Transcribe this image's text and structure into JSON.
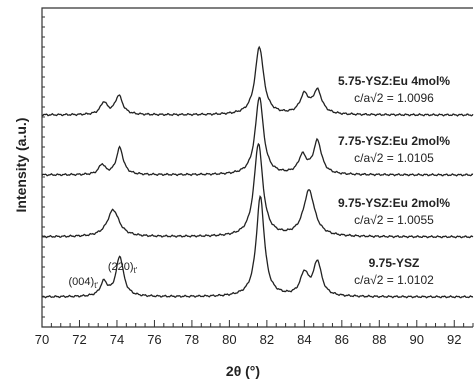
{
  "chart_data": {
    "type": "line",
    "xlabel": "2θ (°)",
    "ylabel": "Intensity (a.u.)",
    "xlim": [
      70,
      93
    ],
    "xticks": [
      70,
      72,
      74,
      76,
      78,
      80,
      82,
      84,
      86,
      88,
      90,
      92
    ],
    "minor_tick_step": 0.5,
    "yticks_labeled": false,
    "grid": false,
    "legend": "none",
    "series_color": "#222222",
    "series": [
      {
        "label_name": "5.75-YSZ:Eu 4mol%",
        "label_ratio": "c/a√2 = 1.0096",
        "offset_level": 3,
        "peaks": [
          {
            "x": 73.3,
            "height": 0.12,
            "width": 0.22
          },
          {
            "x": 74.1,
            "height": 0.19,
            "width": 0.24
          },
          {
            "x": 81.6,
            "height": 0.68,
            "width": 0.27
          },
          {
            "x": 84.0,
            "height": 0.19,
            "width": 0.28
          },
          {
            "x": 84.7,
            "height": 0.23,
            "width": 0.28
          }
        ]
      },
      {
        "label_name": "7.75-YSZ:Eu 2mol%",
        "label_ratio": "c/a√2 = 1.0105",
        "offset_level": 2,
        "peaks": [
          {
            "x": 73.2,
            "height": 0.1,
            "width": 0.2
          },
          {
            "x": 74.15,
            "height": 0.27,
            "width": 0.22
          },
          {
            "x": 81.6,
            "height": 0.78,
            "width": 0.26
          },
          {
            "x": 83.9,
            "height": 0.18,
            "width": 0.26
          },
          {
            "x": 84.7,
            "height": 0.33,
            "width": 0.26
          }
        ]
      },
      {
        "label_name": "9.75-YSZ:Eu 2mol%",
        "label_ratio": "c/a√2 = 1.0055",
        "offset_level": 1,
        "peaks": [
          {
            "x": 73.8,
            "height": 0.27,
            "width": 0.38
          },
          {
            "x": 81.55,
            "height": 0.93,
            "width": 0.28
          },
          {
            "x": 84.25,
            "height": 0.46,
            "width": 0.36
          }
        ]
      },
      {
        "label_name": "9.75-YSZ",
        "label_ratio": "c/a√2 = 1.0102",
        "offset_level": 0,
        "peaks": [
          {
            "x": 73.3,
            "height": 0.14,
            "width": 0.22
          },
          {
            "x": 74.15,
            "height": 0.4,
            "width": 0.24
          },
          {
            "x": 81.65,
            "height": 1.0,
            "width": 0.26
          },
          {
            "x": 84.0,
            "height": 0.22,
            "width": 0.26
          },
          {
            "x": 84.7,
            "height": 0.34,
            "width": 0.26
          }
        ]
      }
    ],
    "annotations": [
      {
        "main": "(004)",
        "sub": "t'",
        "x": 72.2,
        "series_index": 3
      },
      {
        "main": "(220)",
        "sub": "t'",
        "x": 74.3,
        "series_index": 3
      }
    ]
  }
}
